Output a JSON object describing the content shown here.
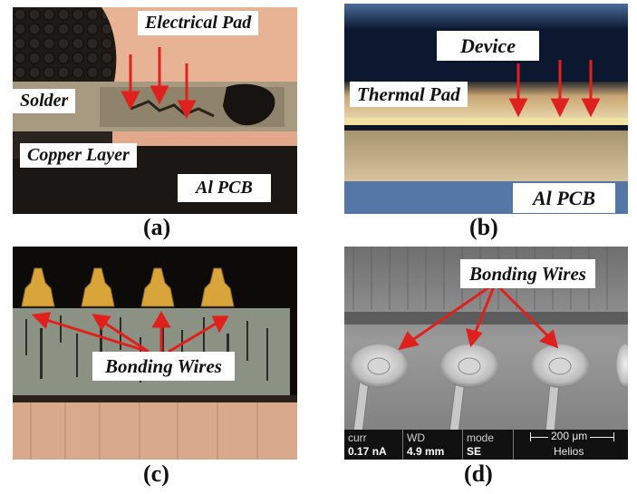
{
  "panels": {
    "a": {
      "caption": "(a)",
      "labels": {
        "electrical_pad": "Electrical Pad",
        "solder": "Solder",
        "copper_layer": "Copper Layer",
        "al_pcb": "Al PCB"
      }
    },
    "b": {
      "caption": "(b)",
      "labels": {
        "device": "Device",
        "thermal_pad": "Thermal Pad",
        "al_pcb": "Al PCB"
      }
    },
    "c": {
      "caption": "(c)",
      "labels": {
        "bonding_wires": "Bonding Wires"
      }
    },
    "d": {
      "caption": "(d)",
      "labels": {
        "bonding_wires": "Bonding Wires"
      },
      "sem_bar": {
        "curr_label": "curr",
        "curr_value": "0.17 nA",
        "wd_label": "WD",
        "wd_value": "4.9 mm",
        "mode_label": "mode",
        "mode_value": "SE",
        "scale_label": "200 μm",
        "instrument": "Helios"
      }
    }
  },
  "colors": {
    "arrow": "#e0201c",
    "background": "#ffffff"
  }
}
